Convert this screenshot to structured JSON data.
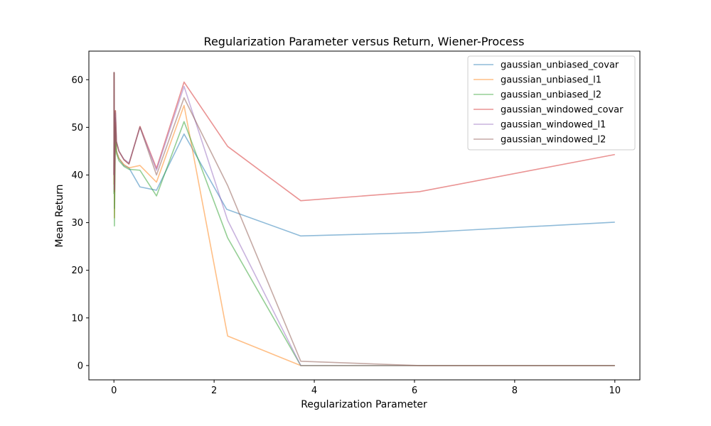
{
  "chart_data": {
    "type": "line",
    "title": "Regularization Parameter versus Return, Wiener-Process",
    "xlabel": "Regularization Parameter",
    "ylabel": "Mean Return",
    "xlim": [
      -0.5,
      10.5
    ],
    "ylim": [
      -3,
      66
    ],
    "xticks": [
      0,
      2,
      4,
      6,
      8,
      10
    ],
    "yticks": [
      0,
      10,
      20,
      30,
      40,
      50,
      60
    ],
    "grid": false,
    "legend_position": "upper-right",
    "series": [
      {
        "name": "gaussian_unbiased_covar",
        "color": "#1f77b4",
        "points": [
          [
            0,
            40
          ],
          [
            0.003,
            61.5
          ],
          [
            0.01,
            33
          ],
          [
            0.03,
            52
          ],
          [
            0.05,
            45
          ],
          [
            0.1,
            43.5
          ],
          [
            0.2,
            42
          ],
          [
            0.3,
            41.5
          ],
          [
            0.52,
            37.5
          ],
          [
            0.85,
            36.8
          ],
          [
            1.4,
            48.6
          ],
          [
            2.25,
            32.8
          ],
          [
            3.73,
            27.2
          ],
          [
            6.1,
            27.9
          ],
          [
            10,
            30.1
          ]
        ]
      },
      {
        "name": "gaussian_unbiased_l1",
        "color": "#ff7f0e",
        "points": [
          [
            0,
            38
          ],
          [
            0.003,
            61.5
          ],
          [
            0.01,
            31
          ],
          [
            0.03,
            51
          ],
          [
            0.05,
            45
          ],
          [
            0.1,
            43.5
          ],
          [
            0.2,
            42.2
          ],
          [
            0.3,
            41.5
          ],
          [
            0.52,
            42
          ],
          [
            0.85,
            38.5
          ],
          [
            1.4,
            54.6
          ],
          [
            2.27,
            6.2
          ],
          [
            3.73,
            0
          ],
          [
            6.1,
            0
          ],
          [
            10,
            0
          ]
        ]
      },
      {
        "name": "gaussian_unbiased_l2",
        "color": "#2ca02c",
        "points": [
          [
            0,
            36
          ],
          [
            0.003,
            61.5
          ],
          [
            0.01,
            29.3
          ],
          [
            0.03,
            50
          ],
          [
            0.05,
            44.5
          ],
          [
            0.1,
            43
          ],
          [
            0.2,
            41.8
          ],
          [
            0.3,
            41.2
          ],
          [
            0.52,
            41
          ],
          [
            0.85,
            35.6
          ],
          [
            1.4,
            51.2
          ],
          [
            2.27,
            26.8
          ],
          [
            3.73,
            0
          ],
          [
            6.1,
            0
          ],
          [
            10,
            0
          ]
        ]
      },
      {
        "name": "gaussian_windowed_covar",
        "color": "#d62728",
        "points": [
          [
            0,
            40
          ],
          [
            0.003,
            61.5
          ],
          [
            0.01,
            37
          ],
          [
            0.03,
            53.5
          ],
          [
            0.05,
            47
          ],
          [
            0.1,
            45
          ],
          [
            0.2,
            43.2
          ],
          [
            0.3,
            42.3
          ],
          [
            0.52,
            50.2
          ],
          [
            0.85,
            41.4
          ],
          [
            1.4,
            59.5
          ],
          [
            2.27,
            46
          ],
          [
            3.73,
            34.6
          ],
          [
            6.1,
            36.5
          ],
          [
            10,
            44.3
          ]
        ]
      },
      {
        "name": "gaussian_windowed_l1",
        "color": "#9467bd",
        "points": [
          [
            0,
            40
          ],
          [
            0.003,
            61.5
          ],
          [
            0.01,
            37
          ],
          [
            0.03,
            53
          ],
          [
            0.05,
            47
          ],
          [
            0.1,
            45
          ],
          [
            0.2,
            43.3
          ],
          [
            0.3,
            42.5
          ],
          [
            0.52,
            50
          ],
          [
            0.85,
            41
          ],
          [
            1.4,
            58.6
          ],
          [
            2.27,
            30.5
          ],
          [
            3.73,
            0
          ],
          [
            6.1,
            0
          ],
          [
            10,
            0
          ]
        ]
      },
      {
        "name": "gaussian_windowed_l2",
        "color": "#8c564b",
        "points": [
          [
            0,
            40
          ],
          [
            0.003,
            61.5
          ],
          [
            0.01,
            36.5
          ],
          [
            0.03,
            53.5
          ],
          [
            0.05,
            47
          ],
          [
            0.1,
            45
          ],
          [
            0.2,
            43.2
          ],
          [
            0.3,
            42.3
          ],
          [
            0.52,
            50.1
          ],
          [
            0.85,
            40
          ],
          [
            1.4,
            56.2
          ],
          [
            2.27,
            37.8
          ],
          [
            3.73,
            0.9
          ],
          [
            6.1,
            0
          ],
          [
            10,
            0
          ]
        ]
      }
    ]
  }
}
